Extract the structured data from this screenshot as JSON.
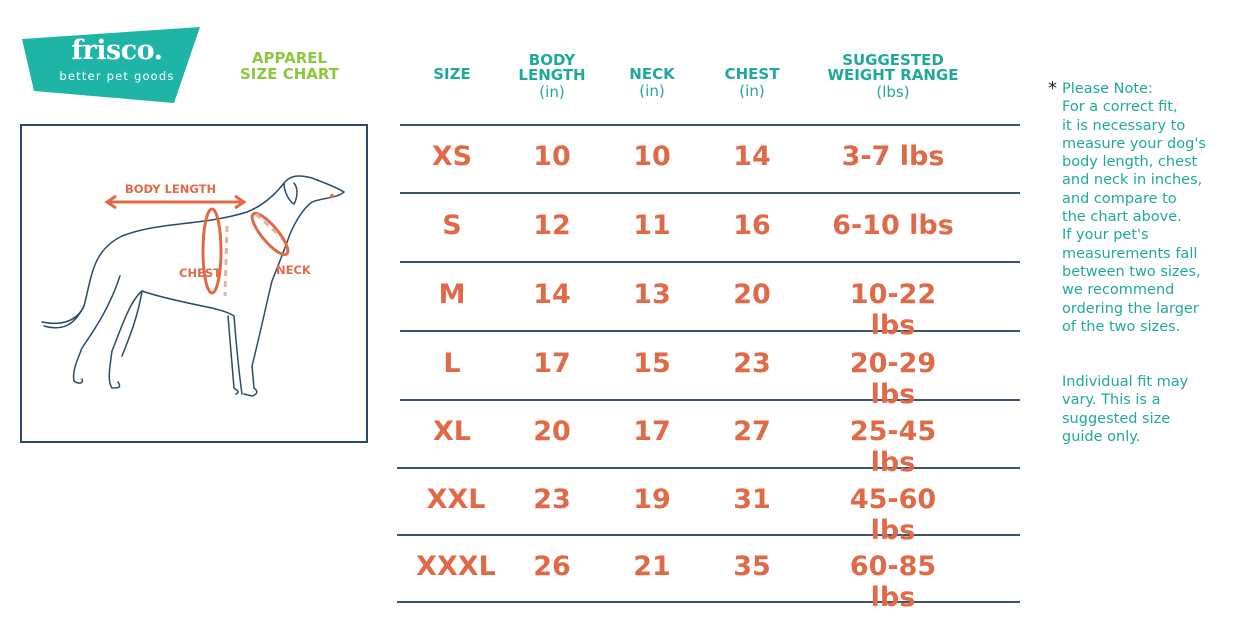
{
  "brand": {
    "name": "frisco.",
    "tagline": "better pet goods"
  },
  "title": {
    "line1": "APPAREL",
    "line2": "SIZE  CHART"
  },
  "illustration": {
    "labels": {
      "body_length": "BODY LENGTH",
      "chest": "CHEST",
      "neck": "NECK"
    }
  },
  "table": {
    "headers": [
      {
        "label": "SIZE",
        "unit": ""
      },
      {
        "label": "BODY LENGTH",
        "unit": "(in)"
      },
      {
        "label": "NECK",
        "unit": "(in)"
      },
      {
        "label": "CHEST",
        "unit": "(in)"
      },
      {
        "label": "SUGGESTED WEIGHT RANGE",
        "unit": "(lbs)"
      }
    ],
    "rows": [
      {
        "size": "XS",
        "body_length": "10",
        "neck": "10",
        "chest": "14",
        "weight": "3-7 lbs"
      },
      {
        "size": "S",
        "body_length": "12",
        "neck": "11",
        "chest": "16",
        "weight": "6-10 lbs"
      },
      {
        "size": "M",
        "body_length": "14",
        "neck": "13",
        "chest": "20",
        "weight": "10-22 lbs"
      },
      {
        "size": "L",
        "body_length": "17",
        "neck": "15",
        "chest": "23",
        "weight": "20-29 lbs"
      },
      {
        "size": "XL",
        "body_length": "20",
        "neck": "17",
        "chest": "27",
        "weight": "25-45 lbs"
      },
      {
        "size": "XXL",
        "body_length": "23",
        "neck": "19",
        "chest": "31",
        "weight": "45-60 lbs"
      },
      {
        "size": "XXXL",
        "body_length": "26",
        "neck": "21",
        "chest": "35",
        "weight": "60-85 lbs"
      }
    ]
  },
  "note": {
    "marker": "*",
    "text": "Please Note:\nFor a correct fit,\nit is necessary to\nmeasure your dog's\nbody length, chest\nand neck in inches,\nand compare to\nthe chart above.\nIf your pet's\nmeasurements fall\nbetween two sizes,\nwe recommend\nordering the larger\nof the two sizes.",
    "disclaimer": "Individual fit may\nvary. This is a\nsuggested size\nguide only."
  },
  "colors": {
    "brand_teal": "#1fb5a6",
    "title_green": "#8dc63f",
    "header_teal": "#20a99a",
    "value_orange": "#e06a47",
    "line_navy": "#2b4a6b"
  }
}
